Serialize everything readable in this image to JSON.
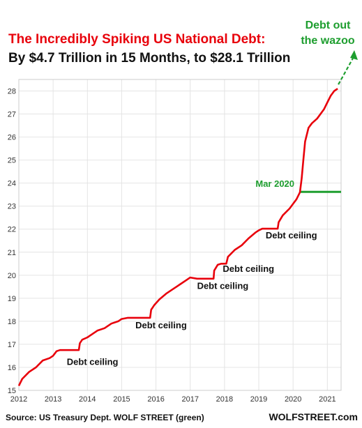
{
  "chart_data": {
    "type": "line",
    "title": "The Incredibly Spiking US National Debt:",
    "subtitle": "By $4.7 Trillion in 15 Months, to $28.1 Trillion",
    "xlabel": "",
    "ylabel": "",
    "xlim": [
      2012.0,
      2021.4
    ],
    "ylim": [
      15,
      28.5
    ],
    "x_ticks": [
      "2012",
      "2013",
      "2014",
      "2015",
      "2016",
      "2017",
      "2018",
      "2019",
      "2020",
      "2021"
    ],
    "y_ticks": [
      "15",
      "16",
      "17",
      "18",
      "19",
      "20",
      "21",
      "22",
      "23",
      "24",
      "25",
      "26",
      "27",
      "28"
    ],
    "grid": true,
    "series": [
      {
        "color": "#e8000b",
        "x": [
          2012.0,
          2012.1,
          2012.3,
          2012.5,
          2012.7,
          2012.9,
          2013.0,
          2013.1,
          2013.2,
          2013.38,
          2013.75,
          2013.78,
          2013.85,
          2014.0,
          2014.1,
          2014.3,
          2014.5,
          2014.7,
          2014.9,
          2015.0,
          2015.18,
          2015.83,
          2015.86,
          2015.95,
          2016.1,
          2016.3,
          2016.5,
          2016.7,
          2016.9,
          2017.0,
          2017.2,
          2017.68,
          2017.7,
          2017.8,
          2017.9,
          2018.05,
          2018.1,
          2018.3,
          2018.5,
          2018.7,
          2018.9,
          2019.0,
          2019.1,
          2019.2,
          2019.55,
          2019.58,
          2019.7,
          2019.9,
          2020.0,
          2020.1,
          2020.2,
          2020.25,
          2020.3,
          2020.35,
          2020.45,
          2020.55,
          2020.7,
          2020.9,
          2021.0,
          2021.1,
          2021.2,
          2021.3
        ],
        "y": [
          15.2,
          15.5,
          15.8,
          16.0,
          16.3,
          16.4,
          16.5,
          16.7,
          16.75,
          16.75,
          16.75,
          17.05,
          17.2,
          17.3,
          17.4,
          17.6,
          17.7,
          17.9,
          18.0,
          18.1,
          18.15,
          18.15,
          18.5,
          18.7,
          18.95,
          19.2,
          19.4,
          19.6,
          19.8,
          19.9,
          19.85,
          19.85,
          20.2,
          20.45,
          20.5,
          20.5,
          20.8,
          21.1,
          21.3,
          21.6,
          21.85,
          21.95,
          22.02,
          22.02,
          22.02,
          22.3,
          22.6,
          22.9,
          23.1,
          23.3,
          23.6,
          24.2,
          25.0,
          25.8,
          26.4,
          26.6,
          26.8,
          27.2,
          27.5,
          27.8,
          28.0,
          28.1
        ]
      }
    ],
    "reference_line": {
      "label": "Mar 2020",
      "y": 23.62,
      "x_start": 2020.2,
      "x_end": 2021.4,
      "color": "#1e9e2f"
    },
    "arrow": {
      "label_line1": "Debt out",
      "label_line2": "the wazoo",
      "color": "#1e9e2f",
      "x_from": 2021.3,
      "y_from": 28.1
    },
    "annotations": [
      {
        "text": "Debt ceiling",
        "x": 2013.4,
        "y": 16.1
      },
      {
        "text": "Debt ceiling",
        "x": 2015.4,
        "y": 17.7
      },
      {
        "text": "Debt ceiling",
        "x": 2017.2,
        "y": 19.4
      },
      {
        "text": "Debt ceiling",
        "x": 2017.95,
        "y": 20.15
      },
      {
        "text": "Debt ceiling",
        "x": 2019.2,
        "y": 21.6
      }
    ]
  },
  "footer": {
    "source": "Source: US Treasury Dept. WOLF STREET (green)",
    "brand": "WOLFSTREET.com"
  }
}
